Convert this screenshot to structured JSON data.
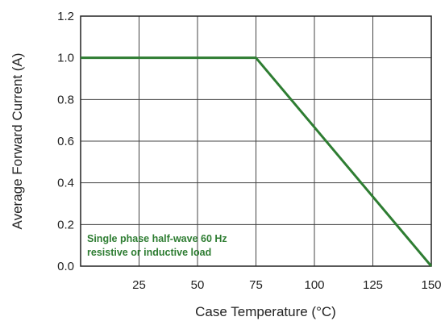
{
  "chart_data": {
    "type": "line",
    "xlabel": "Case  Temperature (°C)",
    "ylabel": "Average Forward Current (A)",
    "xlim": [
      0,
      150
    ],
    "ylim": [
      0,
      1.2
    ],
    "x_ticks": [
      "25",
      "50",
      "75",
      "100",
      "125",
      "150"
    ],
    "y_ticks": [
      "0.0",
      "0.2",
      "0.4",
      "0.6",
      "0.8",
      "1.0",
      "1.2"
    ],
    "grid": true,
    "series": [
      {
        "x": [
          0,
          75,
          150
        ],
        "y": [
          1.0,
          1.0,
          0.0
        ],
        "color": "#2e7d32"
      }
    ],
    "annotation": {
      "lines": [
        "Single phase half-wave 60 Hz",
        "resistive or inductive load"
      ],
      "color": "#2e7d32"
    }
  }
}
